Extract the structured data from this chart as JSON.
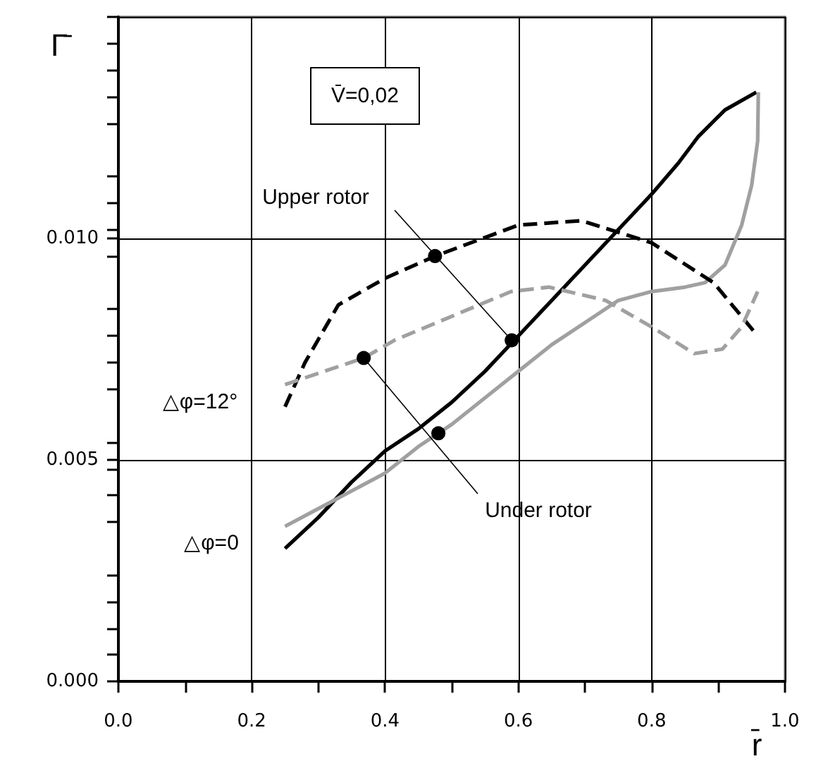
{
  "chart_data": {
    "type": "line",
    "xlabel": "r̄",
    "ylabel": "Γ̄",
    "xlim": [
      0,
      1
    ],
    "ylim": [
      0,
      0.015
    ],
    "xticks": [
      {
        "value": 0,
        "label": "0.0"
      },
      {
        "value": 0.2,
        "label": "0.2"
      },
      {
        "value": 0.4,
        "label": "0.4"
      },
      {
        "value": 0.6,
        "label": "0.6"
      },
      {
        "value": 0.8,
        "label": "0.8"
      },
      {
        "value": 1,
        "label": "1.0"
      }
    ],
    "yticks": [
      {
        "value": 0,
        "label": "0.000"
      },
      {
        "value": 0.005,
        "label": "0.005"
      },
      {
        "value": 0.01,
        "label": "0.010"
      },
      {
        "value": 0.015,
        "label": null
      }
    ],
    "grid": true,
    "marker": "none",
    "annotations": [
      "V̄=0,02",
      {
        "text": "Upper rotor",
        "x": 0.59,
        "y": 0.0077
      },
      {
        "text": "Under rotor",
        "x": 0.368,
        "y": 0.0073
      },
      "△φ=12°",
      "△φ=0"
    ],
    "series": [
      {
        "color": "#000000",
        "line_style": "solid",
        "x": [
          0.25,
          0.3,
          0.35,
          0.4,
          0.45,
          0.5,
          0.55,
          0.6,
          0.65,
          0.7,
          0.75,
          0.8,
          0.84,
          0.87,
          0.91,
          0.957
        ],
        "values": [
          0.003,
          0.0037,
          0.0045,
          0.0052,
          0.0057,
          0.0063,
          0.007,
          0.0078,
          0.0086,
          0.0094,
          0.0102,
          0.011,
          0.0117,
          0.0123,
          0.0129,
          0.0133
        ]
      },
      {
        "color": "#a0a0a0",
        "line_style": "solid",
        "x": [
          0.25,
          0.3,
          0.35,
          0.4,
          0.45,
          0.5,
          0.55,
          0.6,
          0.65,
          0.7,
          0.75,
          0.8,
          0.85,
          0.88,
          0.91,
          0.935,
          0.95,
          0.959,
          0.96
        ],
        "values": [
          0.0035,
          0.0039,
          0.0043,
          0.0047,
          0.0053,
          0.0058,
          0.0064,
          0.007,
          0.0076,
          0.0081,
          0.0086,
          0.0088,
          0.0089,
          0.009,
          0.0094,
          0.0103,
          0.0112,
          0.0122,
          0.0133
        ]
      },
      {
        "color": "#000000",
        "line_style": "dashed",
        "x": [
          0.25,
          0.28,
          0.33,
          0.4,
          0.475,
          0.6,
          0.695,
          0.8,
          0.893,
          0.959
        ],
        "values": [
          0.0062,
          0.0072,
          0.0085,
          0.0091,
          0.0096,
          0.0103,
          0.0104,
          0.0099,
          0.009,
          0.0078
        ]
      },
      {
        "color": "#a0a0a0",
        "line_style": "dashed",
        "x": [
          0.25,
          0.368,
          0.414,
          0.589,
          0.646,
          0.731,
          0.8,
          0.864,
          0.906,
          0.935,
          0.959
        ],
        "values": [
          0.0067,
          0.0073,
          0.0077,
          0.0088,
          0.0089,
          0.0086,
          0.008,
          0.0074,
          0.0075,
          0.008,
          0.0088
        ]
      },
      {
        "type": "scatter",
        "color": "#000000",
        "marker": "circle",
        "x": [
          0.475,
          0.59,
          0.368,
          0.48
        ],
        "values": [
          0.0096,
          0.0077,
          0.0073,
          0.0056
        ]
      }
    ]
  }
}
